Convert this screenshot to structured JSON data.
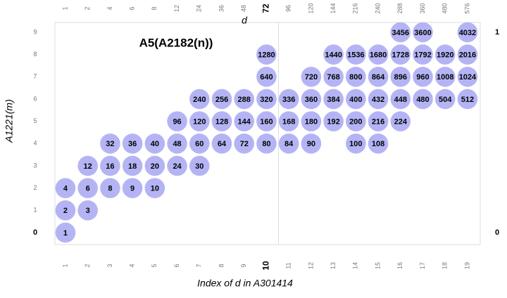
{
  "chart_data": {
    "type": "scatter",
    "title": "A5(A2182(n))",
    "x_label": "Index of d in A301414",
    "x2_label": "d",
    "y_label": "A1221(m)",
    "color": "#b4b4f5",
    "xlim": [
      0.5,
      19.5
    ],
    "ylim": [
      -0.5,
      9.5
    ],
    "y2lim": [
      -0.056,
      1.056
    ],
    "xticks": [
      1,
      2,
      3,
      4,
      5,
      6,
      7,
      8,
      9,
      10,
      11,
      12,
      13,
      14,
      15,
      16,
      17,
      18,
      19
    ],
    "x2ticks": [
      {
        "value": 1,
        "label": "1"
      },
      {
        "value": 2,
        "label": "2"
      },
      {
        "value": 3,
        "label": "4"
      },
      {
        "value": 4,
        "label": "6"
      },
      {
        "value": 5,
        "label": "8"
      },
      {
        "value": 6,
        "label": "12"
      },
      {
        "value": 7,
        "label": "24"
      },
      {
        "value": 8,
        "label": "36"
      },
      {
        "value": 9,
        "label": "48"
      },
      {
        "value": 10,
        "label": "72"
      },
      {
        "value": 11,
        "label": "96"
      },
      {
        "value": 12,
        "label": "120"
      },
      {
        "value": 13,
        "label": "144"
      },
      {
        "value": 14,
        "label": "216"
      },
      {
        "value": 15,
        "label": "240"
      },
      {
        "value": 16,
        "label": "288"
      },
      {
        "value": 17,
        "label": "360"
      },
      {
        "value": 18,
        "label": "480"
      },
      {
        "value": 19,
        "label": "576"
      }
    ],
    "yticks": [
      0,
      1,
      2,
      3,
      4,
      5,
      6,
      7,
      8,
      9
    ],
    "y2ticks": [
      0,
      1
    ],
    "x": [
      1,
      1,
      2,
      1,
      2,
      3,
      4,
      5,
      2,
      3,
      4,
      5,
      6,
      7,
      3,
      4,
      5,
      6,
      7,
      8,
      9,
      10,
      11,
      12,
      14,
      15,
      6,
      7,
      8,
      9,
      10,
      11,
      12,
      13,
      14,
      15,
      16,
      7,
      8,
      9,
      10,
      11,
      12,
      13,
      14,
      15,
      16,
      17,
      18,
      19,
      10,
      12,
      13,
      14,
      15,
      16,
      17,
      18,
      19,
      10,
      13,
      14,
      15,
      16,
      17,
      18,
      19,
      16,
      17,
      19
    ],
    "y": [
      0,
      1,
      1,
      2,
      2,
      2,
      2,
      2,
      3,
      3,
      3,
      3,
      3,
      3,
      4,
      4,
      4,
      4,
      4,
      4,
      4,
      4,
      4,
      4,
      4,
      4,
      5,
      5,
      5,
      5,
      5,
      5,
      5,
      5,
      5,
      5,
      5,
      6,
      6,
      6,
      6,
      6,
      6,
      6,
      6,
      6,
      6,
      6,
      6,
      6,
      7,
      7,
      7,
      7,
      7,
      7,
      7,
      7,
      7,
      8,
      8,
      8,
      8,
      8,
      8,
      8,
      8,
      9,
      9,
      9
    ],
    "point_labels": [
      1,
      2,
      3,
      4,
      6,
      8,
      9,
      10,
      12,
      16,
      18,
      20,
      24,
      30,
      32,
      36,
      40,
      48,
      60,
      64,
      72,
      80,
      84,
      90,
      100,
      108,
      96,
      120,
      128,
      144,
      160,
      168,
      180,
      192,
      200,
      216,
      224,
      240,
      256,
      288,
      320,
      336,
      360,
      384,
      400,
      432,
      448,
      480,
      504,
      512,
      640,
      720,
      768,
      800,
      864,
      896,
      960,
      1008,
      1024,
      1280,
      1440,
      1536,
      1680,
      1728,
      1792,
      1920,
      2016,
      3456,
      3600,
      4032
    ]
  }
}
